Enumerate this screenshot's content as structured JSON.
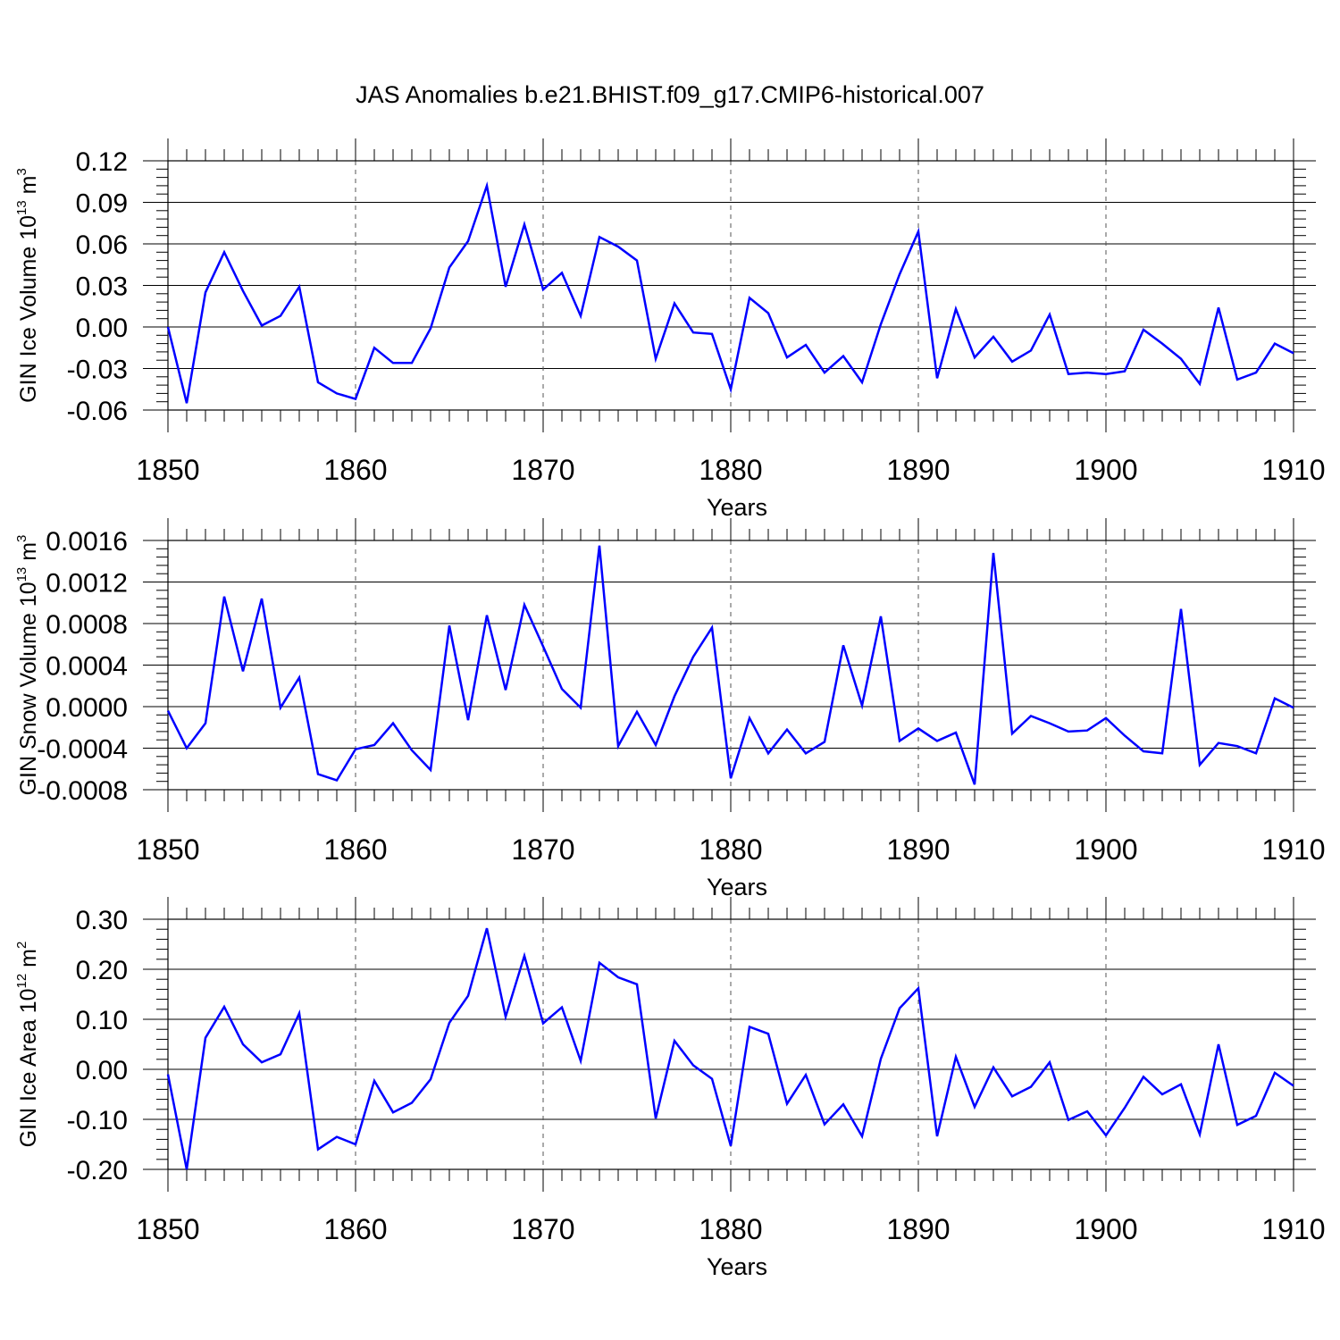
{
  "title": "JAS Anomalies b.e21.BHIST.f09_g17.CMIP6-historical.007",
  "chart_data": [
    {
      "type": "line",
      "name": "ice-volume",
      "ylabel": {
        "base": "GIN Ice Volume 10",
        "exp1": "13",
        "unit": " m",
        "exp2": "3"
      },
      "xlabel": "Years",
      "xlim": [
        1850,
        1910
      ],
      "ylim": [
        -0.06,
        0.12
      ],
      "xticks": [
        1850,
        1860,
        1870,
        1880,
        1890,
        1900,
        1910
      ],
      "yticks": [
        -0.06,
        -0.03,
        0.0,
        0.03,
        0.06,
        0.09,
        0.12
      ],
      "ytick_labels": [
        "-0.06",
        "-0.03",
        "0.00",
        "0.03",
        "0.06",
        "0.09",
        "0.12"
      ],
      "x": [
        1850,
        1851,
        1852,
        1853,
        1854,
        1855,
        1856,
        1857,
        1858,
        1859,
        1860,
        1861,
        1862,
        1863,
        1864,
        1865,
        1866,
        1867,
        1868,
        1869,
        1870,
        1871,
        1872,
        1873,
        1874,
        1875,
        1876,
        1877,
        1878,
        1879,
        1880,
        1881,
        1882,
        1883,
        1884,
        1885,
        1886,
        1887,
        1888,
        1889,
        1890,
        1891,
        1892,
        1893,
        1894,
        1895,
        1896,
        1897,
        1898,
        1899,
        1900,
        1901,
        1902,
        1903,
        1904,
        1905,
        1906,
        1907,
        1908,
        1909,
        1910
      ],
      "y": [
        0.0,
        -0.055,
        0.025,
        0.054,
        0.026,
        0.001,
        0.008,
        0.029,
        -0.04,
        -0.048,
        -0.052,
        -0.015,
        -0.026,
        -0.026,
        -0.001,
        0.043,
        0.062,
        0.102,
        0.029,
        0.074,
        0.027,
        0.039,
        0.008,
        0.065,
        0.058,
        0.048,
        -0.023,
        0.017,
        -0.004,
        -0.005,
        -0.045,
        0.021,
        0.01,
        -0.022,
        -0.013,
        -0.033,
        -0.021,
        -0.04,
        0.002,
        0.038,
        0.069,
        -0.037,
        0.013,
        -0.022,
        -0.007,
        -0.025,
        -0.017,
        0.009,
        -0.034,
        -0.033,
        -0.034,
        -0.032,
        -0.002,
        -0.012,
        -0.023,
        -0.041,
        0.014,
        -0.038,
        -0.033,
        -0.012,
        -0.019
      ]
    },
    {
      "type": "line",
      "name": "snow-volume",
      "ylabel": {
        "base": "GIN Snow Volume 10",
        "exp1": "13",
        "unit": " m",
        "exp2": "3"
      },
      "xlabel": "Years",
      "xlim": [
        1850,
        1910
      ],
      "ylim": [
        -0.0008,
        0.0016
      ],
      "xticks": [
        1850,
        1860,
        1870,
        1880,
        1890,
        1900,
        1910
      ],
      "yticks": [
        -0.0008,
        -0.0004,
        0.0,
        0.0004,
        0.0008,
        0.0012,
        0.0016
      ],
      "ytick_labels": [
        "-0.0008",
        "-0.0004",
        "0.0000",
        "0.0004",
        "0.0008",
        "0.0012",
        "0.0016"
      ],
      "x": [
        1850,
        1851,
        1852,
        1853,
        1854,
        1855,
        1856,
        1857,
        1858,
        1859,
        1860,
        1861,
        1862,
        1863,
        1864,
        1865,
        1866,
        1867,
        1868,
        1869,
        1870,
        1871,
        1872,
        1873,
        1874,
        1875,
        1876,
        1877,
        1878,
        1879,
        1880,
        1881,
        1882,
        1883,
        1884,
        1885,
        1886,
        1887,
        1888,
        1889,
        1890,
        1891,
        1892,
        1893,
        1894,
        1895,
        1896,
        1897,
        1898,
        1899,
        1900,
        1901,
        1902,
        1903,
        1904,
        1905,
        1906,
        1907,
        1908,
        1909,
        1910
      ],
      "y": [
        -4e-05,
        -0.0004,
        -0.00016,
        0.00106,
        0.00034,
        0.00104,
        -1e-05,
        0.00028,
        -0.00065,
        -0.00071,
        -0.00041,
        -0.00037,
        -0.00016,
        -0.00042,
        -0.00061,
        0.00078,
        -0.00013,
        0.00088,
        0.00016,
        0.00098,
        0.00058,
        0.00017,
        -1e-05,
        0.00155,
        -0.00038,
        -5e-05,
        -0.00037,
        0.0001,
        0.00048,
        0.00076,
        -0.00069,
        -0.00011,
        -0.00045,
        -0.00022,
        -0.00045,
        -0.00034,
        0.00059,
        1e-05,
        0.00087,
        -0.00033,
        -0.00021,
        -0.00033,
        -0.00025,
        -0.00075,
        0.00148,
        -0.00026,
        -9e-05,
        -0.00016,
        -0.00024,
        -0.00023,
        -0.00011,
        -0.00028,
        -0.00043,
        -0.00045,
        0.00094,
        -0.00056,
        -0.00035,
        -0.00038,
        -0.00045,
        8e-05,
        -1e-05
      ]
    },
    {
      "type": "line",
      "name": "ice-area",
      "ylabel": {
        "base": "GIN Ice Area 10",
        "exp1": "12",
        "unit": " m",
        "exp2": "2"
      },
      "xlabel": "Years",
      "xlim": [
        1850,
        1910
      ],
      "ylim": [
        -0.2,
        0.3
      ],
      "xticks": [
        1850,
        1860,
        1870,
        1880,
        1890,
        1900,
        1910
      ],
      "yticks": [
        -0.2,
        -0.1,
        0.0,
        0.1,
        0.2,
        0.3
      ],
      "ytick_labels": [
        "-0.20",
        "-0.10",
        "0.00",
        "0.10",
        "0.20",
        "0.30"
      ],
      "x": [
        1850,
        1851,
        1852,
        1853,
        1854,
        1855,
        1856,
        1857,
        1858,
        1859,
        1860,
        1861,
        1862,
        1863,
        1864,
        1865,
        1866,
        1867,
        1868,
        1869,
        1870,
        1871,
        1872,
        1873,
        1874,
        1875,
        1876,
        1877,
        1878,
        1879,
        1880,
        1881,
        1882,
        1883,
        1884,
        1885,
        1886,
        1887,
        1888,
        1889,
        1890,
        1891,
        1892,
        1893,
        1894,
        1895,
        1896,
        1897,
        1898,
        1899,
        1900,
        1901,
        1902,
        1903,
        1904,
        1905,
        1906,
        1907,
        1908,
        1909,
        1910
      ],
      "y": [
        -0.01,
        -0.2,
        0.063,
        0.125,
        0.05,
        0.014,
        0.03,
        0.112,
        -0.16,
        -0.135,
        -0.15,
        -0.023,
        -0.086,
        -0.067,
        -0.02,
        0.093,
        0.147,
        0.282,
        0.105,
        0.227,
        0.092,
        0.124,
        0.017,
        0.213,
        0.184,
        0.17,
        -0.098,
        0.057,
        0.008,
        -0.019,
        -0.153,
        0.085,
        0.071,
        -0.069,
        -0.011,
        -0.11,
        -0.07,
        -0.134,
        0.021,
        0.122,
        0.162,
        -0.134,
        0.025,
        -0.075,
        0.004,
        -0.054,
        -0.035,
        0.014,
        -0.101,
        -0.084,
        -0.132,
        -0.077,
        -0.015,
        -0.05,
        -0.03,
        -0.13,
        0.05,
        -0.111,
        -0.093,
        -0.007,
        -0.033
      ]
    }
  ]
}
